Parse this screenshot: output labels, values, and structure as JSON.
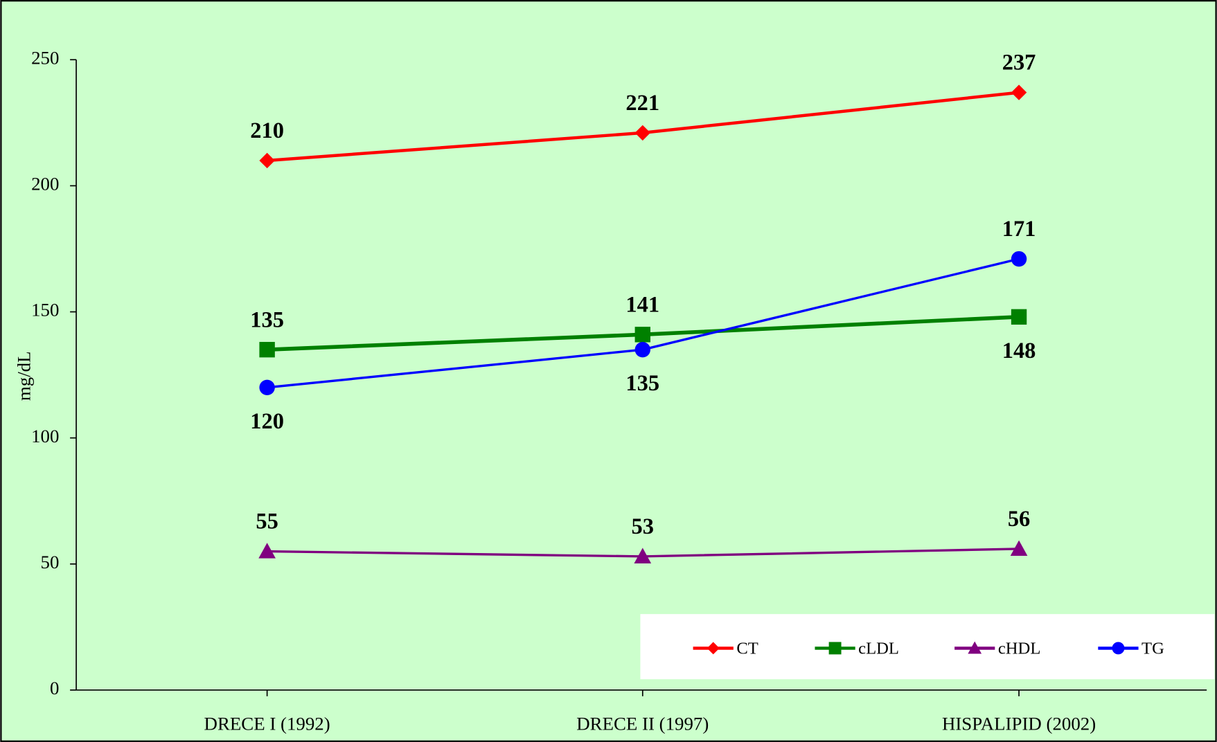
{
  "chart_data": {
    "type": "line",
    "categories": [
      "DRECE I (1992)",
      "DRECE II (1997)",
      "HISPALIPID (2002)"
    ],
    "series": [
      {
        "name": "CT",
        "color": "#ff0000",
        "marker": "diamond",
        "values": [
          210,
          221,
          237
        ]
      },
      {
        "name": "cLDL",
        "color": "#008000",
        "marker": "square",
        "values": [
          135,
          141,
          148
        ]
      },
      {
        "name": "cHDL",
        "color": "#800080",
        "marker": "triangle",
        "values": [
          55,
          53,
          56
        ]
      },
      {
        "name": "TG",
        "color": "#0000ff",
        "marker": "circle",
        "values": [
          120,
          135,
          171
        ]
      }
    ],
    "y_label": "mg/dL",
    "ylim": [
      0,
      250
    ],
    "yticks": [
      0,
      50,
      100,
      150,
      200,
      250
    ],
    "grid": false,
    "legend": "lower right",
    "background": "#ccffcc"
  }
}
